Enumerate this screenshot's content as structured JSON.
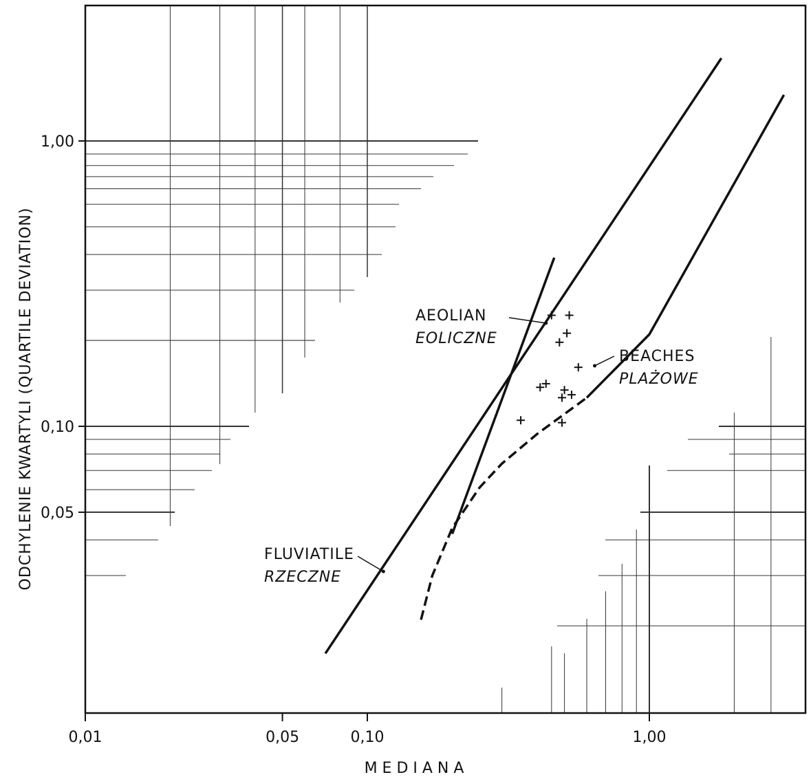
{
  "chart_data": {
    "type": "line",
    "x_scale": "log",
    "y_scale": "log",
    "xlabel": "M E D I A N A",
    "ylabel": "ODCHYLENIE KWARTYLI (QUARTILE DEVIATION)",
    "xlim": [
      0.01,
      3.0
    ],
    "ylim": [
      0.01,
      2.5
    ],
    "xticks": [
      {
        "value": 0.01,
        "label": "0,01"
      },
      {
        "value": 0.05,
        "label": "0,05"
      },
      {
        "value": 0.1,
        "label": "0,10"
      },
      {
        "value": 1.0,
        "label": "1,00"
      }
    ],
    "yticks": [
      {
        "value": 0.05,
        "label": "0,05"
      },
      {
        "value": 0.1,
        "label": "0,10"
      },
      {
        "value": 1.0,
        "label": "1,00"
      }
    ],
    "series": [
      {
        "x": [
          0.071,
          1.8
        ],
        "y": [
          0.016,
          1.95
        ],
        "style": "solid"
      },
      {
        "x": [
          0.2,
          0.46
        ],
        "y": [
          0.042,
          0.39
        ],
        "style": "solid"
      },
      {
        "x": [
          0.155,
          0.17,
          0.2,
          0.25,
          0.3,
          0.4,
          0.6,
          1.0,
          3.0
        ],
        "y": [
          0.021,
          0.03,
          0.044,
          0.061,
          0.074,
          0.094,
          0.126,
          0.21,
          1.45
        ],
        "style": "dashed-then-solid"
      }
    ],
    "points": [
      {
        "x": 0.45,
        "y": 0.245
      },
      {
        "x": 0.52,
        "y": 0.245
      },
      {
        "x": 0.51,
        "y": 0.212
      },
      {
        "x": 0.48,
        "y": 0.197
      },
      {
        "x": 0.41,
        "y": 0.137
      },
      {
        "x": 0.43,
        "y": 0.141
      },
      {
        "x": 0.5,
        "y": 0.134
      },
      {
        "x": 0.49,
        "y": 0.126
      },
      {
        "x": 0.53,
        "y": 0.129
      },
      {
        "x": 0.56,
        "y": 0.161
      },
      {
        "x": 0.35,
        "y": 0.105
      },
      {
        "x": 0.49,
        "y": 0.103
      }
    ],
    "annotations": [
      {
        "label": "AEOLIAN",
        "label_pl": "EOLICZNE",
        "target_x": 0.43,
        "target_y": 0.23
      },
      {
        "label": "BEACHES",
        "label_pl": "PLAŻOWE",
        "target_x": 0.64,
        "target_y": 0.163
      },
      {
        "label": "FLUVIATILE",
        "label_pl": "RZECZNE",
        "target_x": 0.114,
        "target_y": 0.031
      }
    ]
  }
}
